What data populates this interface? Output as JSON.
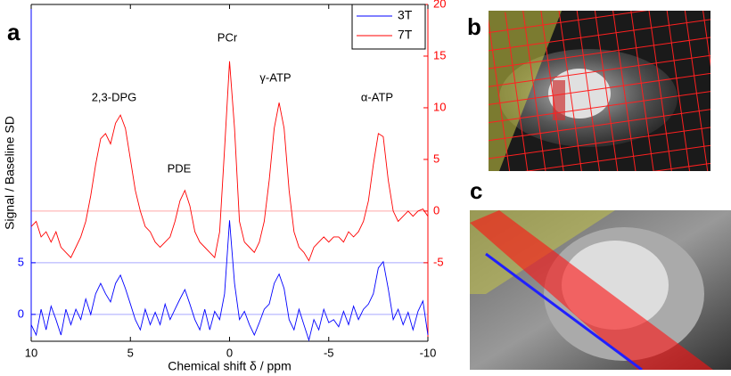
{
  "panels": [
    "a",
    "b",
    "c"
  ],
  "chart_data": {
    "type": "line",
    "xlabel": "Chemical shift δ / ppm",
    "ylabel": "Signal / Baseline SD",
    "x": [
      10,
      9.75,
      9.5,
      9.25,
      9,
      8.75,
      8.5,
      8.25,
      8,
      7.75,
      7.5,
      7.25,
      7,
      6.75,
      6.5,
      6.25,
      6,
      5.75,
      5.5,
      5.25,
      5,
      4.75,
      4.5,
      4.25,
      4,
      3.75,
      3.5,
      3.25,
      3,
      2.75,
      2.5,
      2.25,
      2,
      1.75,
      1.5,
      1.25,
      1,
      0.75,
      0.5,
      0.25,
      0,
      -0.25,
      -0.5,
      -0.75,
      -1,
      -1.25,
      -1.5,
      -1.75,
      -2,
      -2.25,
      -2.5,
      -2.75,
      -3,
      -3.25,
      -3.5,
      -3.75,
      -4,
      -4.25,
      -4.5,
      -4.75,
      -5,
      -5.25,
      -5.5,
      -5.75,
      -6,
      -6.25,
      -6.5,
      -6.75,
      -7,
      -7.25,
      -7.5,
      -7.75,
      -8,
      -8.25,
      -8.5,
      -8.75,
      -9,
      -9.25,
      -9.5,
      -9.75,
      -10
    ],
    "series": [
      {
        "name": "3T",
        "color": "#0000ff",
        "axis": "y",
        "values": [
          -1,
          -2,
          0.5,
          -1.5,
          0.8,
          -0.5,
          -2,
          0.5,
          -1,
          0.5,
          -0.5,
          1.5,
          0,
          2,
          3,
          2,
          1.2,
          3,
          3.8,
          2.5,
          1,
          -0.5,
          -1.5,
          0.5,
          -1,
          0.2,
          -1,
          1,
          -0.5,
          0.5,
          1.5,
          2.4,
          1,
          -0.5,
          -1.5,
          0.5,
          -1.5,
          0.3,
          -0.5,
          2,
          9.1,
          3,
          -0.5,
          0.3,
          -1,
          -2,
          -0.8,
          0.5,
          1,
          3,
          3.9,
          2.5,
          -0.5,
          -1.5,
          0.5,
          -1,
          -2.5,
          -0.5,
          -1.5,
          0.5,
          -0.8,
          -0.5,
          -1.2,
          0.3,
          -1,
          0.8,
          -0.5,
          0.5,
          1,
          2,
          4.5,
          5.1,
          2.5,
          -0.5,
          0.5,
          -1,
          0.2,
          -1.5,
          0.3,
          1.3,
          -2
        ]
      },
      {
        "name": "7T",
        "color": "#ff0000",
        "axis": "y2",
        "values": [
          -1.5,
          -1,
          -2.5,
          -2,
          -3,
          -2,
          -3.5,
          -4,
          -4.5,
          -3.5,
          -2.5,
          -1,
          1.5,
          4.5,
          7,
          7.5,
          6.5,
          8.5,
          9.3,
          8,
          5,
          2,
          0,
          -1.5,
          -2,
          -3,
          -3.5,
          -3,
          -2.5,
          -1,
          1,
          2,
          0.5,
          -2,
          -3,
          -3.5,
          -4,
          -4.5,
          -2,
          6,
          14.5,
          8,
          -1,
          -3,
          -3.5,
          -4,
          -3,
          -1,
          3,
          8,
          10.5,
          8,
          2,
          -2,
          -3.5,
          -4,
          -4.8,
          -3.5,
          -3,
          -2.5,
          -3,
          -2.5,
          -2.5,
          -3,
          -2,
          -2.5,
          -2,
          -1,
          1,
          4.5,
          7.5,
          7.2,
          3,
          0,
          -1,
          -0.5,
          0,
          -0.5,
          0,
          0.2,
          -0.5
        ]
      }
    ],
    "xlim": [
      10,
      -10
    ],
    "xticks": [
      10,
      5,
      0,
      -5,
      -10
    ],
    "ylim": [
      -2.6,
      30
    ],
    "yticks": [
      0,
      5
    ],
    "y2lim": [
      -12.6,
      20
    ],
    "y2ticks": [
      -5,
      0,
      5,
      10,
      15,
      20
    ],
    "annotations": [
      "2,3-DPG",
      "PDE",
      "PCr",
      "γ-ATP",
      "α-ATP"
    ],
    "legend": "upper right",
    "grid": false
  }
}
